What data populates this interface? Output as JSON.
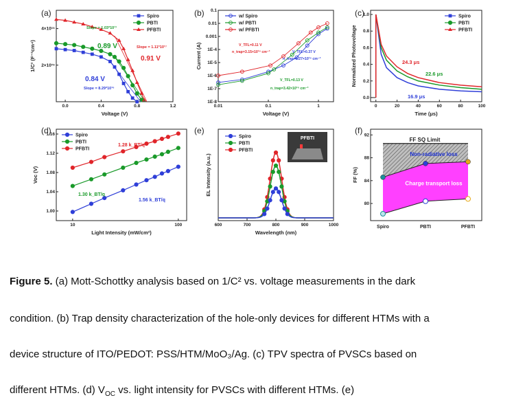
{
  "caption": {
    "label": "Figure 5.",
    "line1": " (a) Mott-Schottky analysis based on 1/C² vs. voltage measurements in the dark",
    "line2": "condition. (b) Trap density characterization of the hole-only devices for different HTMs with a",
    "line3": "device structure of ITO/PEDOT: PSS/HTM/MoO₃/Ag. (c) TPV spectra of PVSCs based on",
    "line4": "different HTMs. (d) V",
    "line4_sub": "OC",
    "line4_rest": " vs. light intensity for PVSCs with different HTMs. (e)"
  },
  "colors": {
    "spiro": "#2f3fd8",
    "pbti": "#1a9a2a",
    "pfbti": "#e0252a",
    "dark": "#222222",
    "magenta": "#ff40ff",
    "teal": "#1d8f9a"
  },
  "chart_data": [
    {
      "panel": "(a)",
      "type": "line",
      "xlabel": "Voltage (V)",
      "ylabel": "1/C² (F⁻²cm⁴)",
      "xticks": [
        "0.0",
        "0.4",
        "0.8",
        "1.2"
      ],
      "yticks": [
        "2×10¹⁶",
        "4×10¹⁶"
      ],
      "xlim": [
        -0.1,
        1.2
      ],
      "ylim": [
        0,
        5e+16
      ],
      "legend": [
        "Spiro",
        "PBTI",
        "PFBTI"
      ],
      "annotations": [
        "Slope = 1.03*10¹⁷",
        "Slope = 1.11*10¹⁷",
        "0.89 V",
        "0.91 V",
        "0.84 V",
        "Slope = 8.29*10¹⁶"
      ],
      "series": [
        {
          "name": "Spiro",
          "x": [
            -0.1,
            0.0,
            0.1,
            0.2,
            0.3,
            0.4,
            0.5,
            0.55,
            0.6,
            0.65,
            0.7,
            0.75,
            0.8
          ],
          "y": [
            2.9e+16,
            2.85e+16,
            2.8e+16,
            2.7e+16,
            2.6e+16,
            2.45e+16,
            2.2e+16,
            1.9e+16,
            1.5e+16,
            1e+16,
            5500000000000000.0,
            2000000000000000.0,
            0.0
          ]
        },
        {
          "name": "PBTI",
          "x": [
            -0.1,
            0.0,
            0.1,
            0.2,
            0.3,
            0.4,
            0.5,
            0.55,
            0.6,
            0.65,
            0.7,
            0.75,
            0.8,
            0.85
          ],
          "y": [
            3.2e+16,
            3.15e+16,
            3.1e+16,
            3e+16,
            2.9e+16,
            2.78e+16,
            2.6e+16,
            2.45e+16,
            2.2e+16,
            1.85e+16,
            1.4e+16,
            9000000000000000.0,
            4500000000000000.0,
            1000000000000000.0
          ]
        },
        {
          "name": "PFBTI",
          "x": [
            -0.1,
            0.0,
            0.1,
            0.2,
            0.3,
            0.4,
            0.5,
            0.6,
            0.65,
            0.7,
            0.75,
            0.8,
            0.85,
            0.88
          ],
          "y": [
            4.5e+16,
            4.45e+16,
            4.35e+16,
            4.25e+16,
            4.1e+16,
            3.95e+16,
            3.75e+16,
            3.35e+16,
            2.9e+16,
            2.3e+16,
            1.7e+16,
            1.05e+16,
            4500000000000000.0,
            1000000000000000.0
          ]
        }
      ]
    },
    {
      "panel": "(b)",
      "type": "scatter",
      "yscale": "log",
      "xscale": "log",
      "xlabel": "Voltage (V)",
      "ylabel": "Current (A)",
      "xticks": [
        "0.01",
        "0.1",
        "1"
      ],
      "yticks": [
        "0.1",
        "0.01",
        "0.001",
        "1E-4",
        "1E-5",
        "1E-6",
        "1E-7",
        "1E-8"
      ],
      "legend": [
        "w/ Spiro",
        "w/ PBTI",
        "w/ PFBTI"
      ],
      "annotations": [
        "V_TFL=0.11 V",
        "n_trap=3.15×10¹⁶ cm⁻³",
        "V_TFL=0.37 V",
        "n_trap=8.27×10¹⁶ cm⁻³",
        "V_TFL=0.13 V",
        "n_trap=3.42×10¹⁶ cm⁻³"
      ],
      "series": [
        {
          "name": "w/ Spiro",
          "x": [
            0.01,
            0.03,
            0.1,
            0.2,
            0.37,
            0.6,
            1.0,
            1.5
          ],
          "y": [
            3e-07,
            5e-07,
            2e-06,
            6e-06,
            2.5e-05,
            0.0002,
            0.0015,
            0.004
          ]
        },
        {
          "name": "w/ PBTI",
          "x": [
            0.01,
            0.03,
            0.1,
            0.13,
            0.3,
            0.6,
            1.0,
            1.5
          ],
          "y": [
            2e-07,
            4e-07,
            1.5e-06,
            3e-06,
            4e-05,
            0.0005,
            0.002,
            0.005
          ]
        },
        {
          "name": "w/ PFBTI",
          "x": [
            0.01,
            0.03,
            0.11,
            0.2,
            0.4,
            0.7,
            1.0,
            1.5
          ],
          "y": [
            1e-06,
            2e-06,
            6e-06,
            3e-05,
            0.0003,
            0.002,
            0.005,
            0.01
          ]
        }
      ]
    },
    {
      "panel": "(c)",
      "type": "line",
      "xlabel": "Time (μs)",
      "ylabel": "Normalized Photovoltage",
      "xticks": [
        "0",
        "20",
        "40",
        "60",
        "80",
        "100"
      ],
      "yticks": [
        "0.0",
        "0.2",
        "0.4",
        "0.6",
        "0.8",
        "1.0"
      ],
      "xlim": [
        -5,
        100
      ],
      "ylim": [
        -0.05,
        1.05
      ],
      "legend": [
        "Spiro",
        "PBTI",
        "PFBTI"
      ],
      "annotations": [
        "24.3 μs",
        "22.6 μs",
        "16.9 μs"
      ],
      "series": [
        {
          "name": "Spiro",
          "tau": 16.9,
          "x": [
            0,
            5,
            10,
            20,
            30,
            40,
            60,
            80,
            100
          ],
          "y": [
            1.0,
            0.52,
            0.36,
            0.24,
            0.18,
            0.14,
            0.1,
            0.08,
            0.07
          ]
        },
        {
          "name": "PBTI",
          "tau": 22.6,
          "x": [
            0,
            5,
            10,
            20,
            30,
            40,
            60,
            80,
            100
          ],
          "y": [
            1.0,
            0.6,
            0.45,
            0.32,
            0.25,
            0.2,
            0.15,
            0.12,
            0.1
          ]
        },
        {
          "name": "PFBTI",
          "tau": 24.3,
          "x": [
            0,
            5,
            10,
            20,
            30,
            40,
            60,
            80,
            100
          ],
          "y": [
            1.0,
            0.64,
            0.5,
            0.37,
            0.29,
            0.24,
            0.18,
            0.15,
            0.13
          ]
        }
      ]
    },
    {
      "panel": "(d)",
      "type": "scatter",
      "xscale": "log",
      "xlabel": "Light Intensity (mW/cm²)",
      "ylabel": "Voc (V)",
      "xticks": [
        "10",
        "100"
      ],
      "yticks": [
        "1.00",
        "1.04",
        "1.08",
        "1.12",
        "1.16"
      ],
      "ylim": [
        0.98,
        1.17
      ],
      "legend": [
        "Spiro",
        "PBTI",
        "PFBTI"
      ],
      "annotations": [
        "1.28 k_BT/q",
        "1.30 k_BT/q",
        "1.56 k_BT/q"
      ],
      "series": [
        {
          "name": "Spiro",
          "x": [
            10,
            15,
            20,
            30,
            40,
            50,
            60,
            70,
            80,
            100
          ],
          "y": [
            0.998,
            1.015,
            1.027,
            1.043,
            1.055,
            1.064,
            1.071,
            1.078,
            1.083,
            1.092
          ]
        },
        {
          "name": "PBTI",
          "x": [
            10,
            15,
            20,
            30,
            40,
            50,
            60,
            70,
            80,
            100
          ],
          "y": [
            1.052,
            1.066,
            1.076,
            1.09,
            1.1,
            1.107,
            1.113,
            1.118,
            1.123,
            1.131
          ]
        },
        {
          "name": "PFBTI",
          "x": [
            10,
            15,
            20,
            30,
            40,
            50,
            60,
            70,
            80,
            100
          ],
          "y": [
            1.09,
            1.102,
            1.112,
            1.124,
            1.133,
            1.14,
            1.145,
            1.15,
            1.154,
            1.161
          ]
        }
      ]
    },
    {
      "panel": "(e)",
      "type": "line",
      "xlabel": "Wavelength (nm)",
      "ylabel": "EL Intensity (a.u.)",
      "xticks": [
        "600",
        "700",
        "800",
        "900",
        "1000"
      ],
      "xlim": [
        600,
        1000
      ],
      "legend": [
        "Spiro",
        "PBTI",
        "PFBTI"
      ],
      "inset_label": "PFBTI",
      "series": [
        {
          "name": "Spiro",
          "center": 800,
          "width": 28,
          "peak": 0.45
        },
        {
          "name": "PBTI",
          "center": 800,
          "width": 28,
          "peak": 0.8
        },
        {
          "name": "PFBTI",
          "center": 800,
          "width": 28,
          "peak": 1.0
        }
      ]
    },
    {
      "panel": "(f)",
      "type": "scatter",
      "xlabel": "",
      "ylabel": "FF (%)",
      "categories": [
        "Spiro",
        "PBTI",
        "PFBTI"
      ],
      "yticks": [
        "80",
        "84",
        "88",
        "92"
      ],
      "ylim": [
        77,
        93
      ],
      "annotations": [
        "FF SQ Limit",
        "Non-radiative loss",
        "Charge transport loss"
      ],
      "series": [
        {
          "name": "SQ limit",
          "values": [
            90.5,
            90.5,
            90.5
          ]
        },
        {
          "name": "upper",
          "values": [
            84.6,
            87.0,
            87.3
          ]
        },
        {
          "name": "lower",
          "values": [
            78.2,
            80.4,
            80.8
          ]
        }
      ]
    }
  ]
}
